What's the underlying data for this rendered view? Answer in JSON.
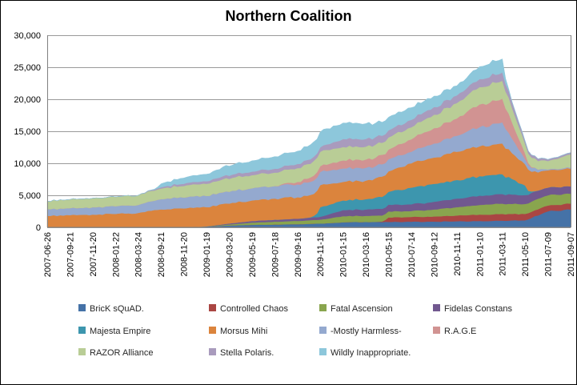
{
  "window": {
    "title": "Northern Coalition"
  },
  "chart_data": {
    "type": "area",
    "stacked": true,
    "title": "Northern Coalition",
    "xlabel": "",
    "ylabel": "",
    "ylim": [
      0,
      30000
    ],
    "ytick_interval": 5000,
    "ytick_labels": [
      "0",
      "5,000",
      "10,000",
      "15,000",
      "20,000",
      "25,000",
      "30,000"
    ],
    "grid": true,
    "grid_color": "#9a9a9a",
    "axis_color": "#808080",
    "legend_position": "bottom",
    "categories": [
      "2007-06-26",
      "2007-09-21",
      "2007-11-20",
      "2008-01-22",
      "2008-03-24",
      "2008-09-21",
      "2008-11-20",
      "2009-01-19",
      "2009-03-20",
      "2009-05-19",
      "2009-07-18",
      "2009-09-16",
      "2009-11-15",
      "2010-01-15",
      "2010-03-16",
      "2010-05-15",
      "2010-07-14",
      "2010-09-12",
      "2010-11-11",
      "2011-01-10",
      "2011-03-11",
      "2011-05-10",
      "2011-07-09",
      "2011-09-07"
    ],
    "series": [
      {
        "name": "BricK sQuAD.",
        "color": "#4572A7",
        "values": [
          0,
          0,
          0,
          0,
          0,
          0,
          0,
          150,
          300,
          400,
          450,
          500,
          600,
          800,
          850,
          850,
          880,
          900,
          950,
          1000,
          1050,
          1100,
          2500,
          2800
        ]
      },
      {
        "name": "Controlled Chaos",
        "color": "#AA4643",
        "values": [
          0,
          0,
          0,
          0,
          0,
          0,
          0,
          0,
          0,
          0,
          0,
          0,
          0,
          0,
          0,
          700,
          750,
          800,
          900,
          1000,
          1050,
          1000,
          900,
          900
        ]
      },
      {
        "name": "Fatal Ascension",
        "color": "#89A54E",
        "values": [
          0,
          0,
          0,
          0,
          0,
          0,
          0,
          0,
          150,
          350,
          450,
          500,
          600,
          950,
          950,
          950,
          920,
          1100,
          1300,
          1500,
          1600,
          1550,
          1600,
          1550
        ]
      },
      {
        "name": "Fidelas Constans",
        "color": "#71588F",
        "values": [
          0,
          0,
          0,
          0,
          0,
          0,
          0,
          0,
          150,
          250,
          300,
          350,
          450,
          950,
          1000,
          1050,
          1050,
          1200,
          1350,
          1450,
          1500,
          1400,
          1200,
          1150
        ]
      },
      {
        "name": "Majesta Empire",
        "color": "#3D96AE",
        "values": [
          0,
          0,
          0,
          0,
          0,
          0,
          0,
          0,
          0,
          0,
          0,
          0,
          1500,
          1500,
          1600,
          2000,
          2600,
          2800,
          2900,
          3050,
          3100,
          1500,
          0,
          0
        ]
      },
      {
        "name": "Morsus Mihi",
        "color": "#DB843D",
        "values": [
          1800,
          1900,
          2000,
          2100,
          2250,
          2800,
          2950,
          3000,
          3100,
          3200,
          3300,
          3350,
          3450,
          2900,
          2900,
          3200,
          3800,
          4100,
          4400,
          4650,
          4800,
          3300,
          2700,
          2750
        ]
      },
      {
        "name": "-Mostly Harmless-",
        "color": "#94A9CF",
        "values": [
          1050,
          1100,
          1150,
          1200,
          1250,
          1600,
          1700,
          1750,
          1850,
          1900,
          1950,
          2000,
          2050,
          2100,
          2000,
          1900,
          1800,
          2200,
          2500,
          3000,
          3300,
          800,
          150,
          150
        ]
      },
      {
        "name": "R.A.G.E",
        "color": "#D19392",
        "values": [
          0,
          0,
          0,
          0,
          0,
          0,
          0,
          0,
          0,
          0,
          0,
          400,
          900,
          1250,
          1300,
          1500,
          1950,
          2400,
          2700,
          3550,
          3700,
          900,
          0,
          0
        ]
      },
      {
        "name": "RAZOR Alliance",
        "color": "#B9CD96",
        "values": [
          1250,
          1350,
          1400,
          1450,
          1500,
          1650,
          1800,
          1900,
          2000,
          2050,
          2100,
          2150,
          2250,
          2100,
          2000,
          1900,
          1870,
          2100,
          2400,
          2700,
          2800,
          1500,
          1300,
          2100
        ]
      },
      {
        "name": "Stella Polaris.",
        "color": "#A99BBD",
        "values": [
          0,
          0,
          0,
          0,
          0,
          200,
          350,
          400,
          500,
          550,
          600,
          650,
          700,
          1250,
          1200,
          1100,
          1170,
          1200,
          1200,
          1250,
          1300,
          450,
          250,
          250
        ]
      },
      {
        "name": "Wildly Inappropriate.",
        "color": "#8DC7DB",
        "values": [
          0,
          0,
          0,
          0,
          0,
          550,
          900,
          1100,
          1500,
          1700,
          1900,
          2000,
          2400,
          2500,
          2400,
          2050,
          1900,
          1700,
          1500,
          1950,
          2100,
          0,
          0,
          0
        ]
      }
    ]
  }
}
